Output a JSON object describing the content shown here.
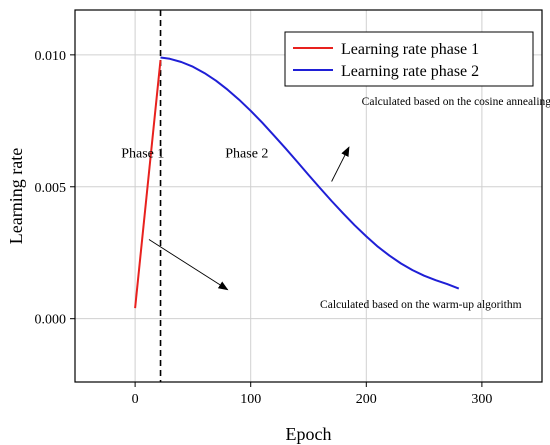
{
  "chart_data": {
    "type": "line",
    "xlabel": "Epoch",
    "ylabel": "Learning rate",
    "xlim": [
      -52,
      352
    ],
    "ylim": [
      -0.0024,
      0.0117
    ],
    "x_ticks": [
      "0",
      "100",
      "200",
      "300"
    ],
    "y_ticks": [
      "0.000",
      "0.005",
      "0.010"
    ],
    "x_tick_values": [
      0,
      100,
      200,
      300
    ],
    "y_tick_values": [
      0,
      0.005,
      0.01
    ],
    "grid": true,
    "legend_position": "top-right",
    "colors": {
      "phase1": "#e8211e",
      "phase2": "#1f1fd6"
    },
    "series": [
      {
        "name": "Learning rate phase 1",
        "x": [
          0,
          22
        ],
        "y": [
          0.0004,
          0.0098
        ]
      },
      {
        "name": "Learning rate phase 2",
        "x": [
          22,
          30,
          40,
          50,
          60,
          70,
          80,
          90,
          100,
          110,
          120,
          130,
          140,
          150,
          160,
          170,
          180,
          190,
          200,
          210,
          220,
          230,
          240,
          250,
          260,
          270,
          280
        ],
        "y": [
          0.0099,
          0.00985,
          0.00973,
          0.00955,
          0.00931,
          0.00902,
          0.00868,
          0.0083,
          0.00788,
          0.00743,
          0.00695,
          0.00646,
          0.00596,
          0.00545,
          0.00495,
          0.00446,
          0.00399,
          0.00354,
          0.00312,
          0.00273,
          0.00239,
          0.00209,
          0.00184,
          0.00163,
          0.00146,
          0.00131,
          0.00114
        ]
      }
    ],
    "divider_x": 22,
    "annotations": [
      {
        "text": "Phase 1",
        "x": -12,
        "y": 0.0061
      },
      {
        "text": "Phase 2",
        "x": 78,
        "y": 0.0061
      },
      {
        "text": "Calculated based on the cosine annealing algorithm",
        "x": 196,
        "y": 0.0081
      },
      {
        "text": "Calculated based on the warm-up algorithm",
        "x": 160,
        "y": 0.0004
      }
    ],
    "arrows": [
      {
        "from": [
          170,
          0.0052
        ],
        "to": [
          185,
          0.0065
        ]
      },
      {
        "from": [
          12,
          0.003
        ],
        "to": [
          80,
          0.0011
        ]
      }
    ]
  }
}
